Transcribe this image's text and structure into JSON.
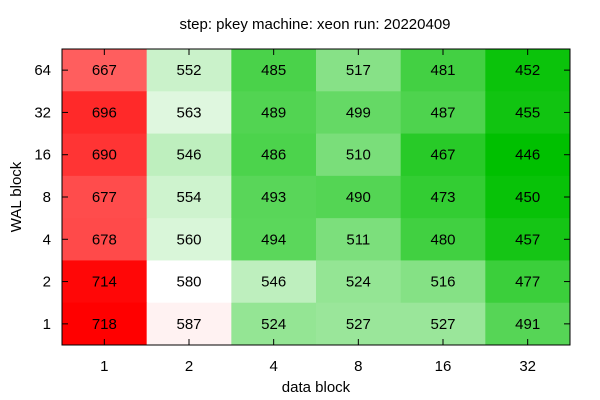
{
  "chart_data": {
    "type": "heatmap",
    "title": "step: pkey  machine: xeon  run: 20220409",
    "xlabel": "data block",
    "ylabel": "WAL block",
    "x_categories": [
      "1",
      "2",
      "4",
      "8",
      "16",
      "32"
    ],
    "y_categories": [
      "64",
      "32",
      "16",
      "8",
      "4",
      "2",
      "1"
    ],
    "values": [
      [
        667,
        552,
        485,
        517,
        481,
        452
      ],
      [
        696,
        563,
        489,
        499,
        487,
        455
      ],
      [
        690,
        546,
        486,
        510,
        467,
        446
      ],
      [
        677,
        554,
        493,
        490,
        473,
        450
      ],
      [
        678,
        560,
        494,
        511,
        480,
        457
      ],
      [
        714,
        580,
        546,
        524,
        516,
        477
      ],
      [
        718,
        587,
        524,
        527,
        527,
        491
      ]
    ],
    "color_scale": {
      "low": "#00c000",
      "mid": "#ffffff",
      "high": "#ff0000",
      "midpoint": 580
    }
  }
}
